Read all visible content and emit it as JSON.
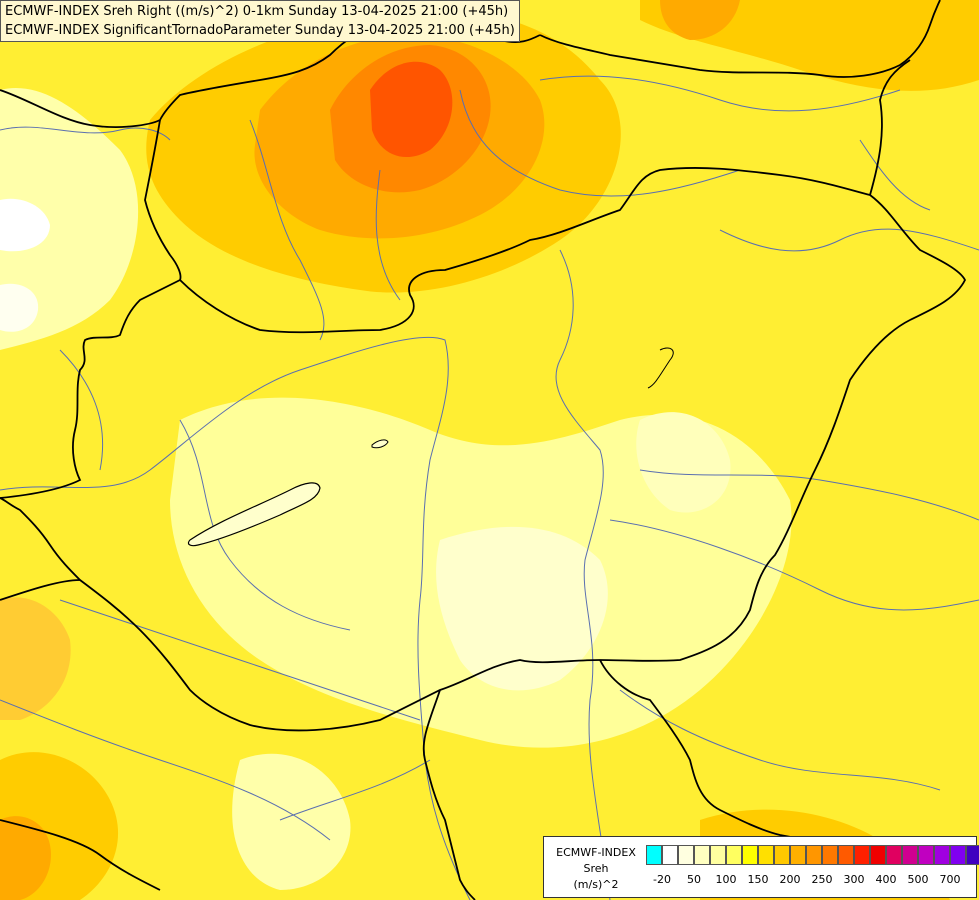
{
  "header": {
    "line1": "ECMWF-INDEX Sreh Right ((m/s)^2) 0-1km Sunday 13-04-2025 21:00 (+45h)",
    "line2": "ECMWF-INDEX SignificantTornadoParameter Sunday 13-04-2025 21:00 (+45h)"
  },
  "legend": {
    "title_line1": "ECMWF-INDEX",
    "title_line2": "Sreh",
    "title_line3": "(m/s)^2",
    "colors": [
      "#00ffff",
      "#ffffff",
      "#ffffe0",
      "#ffffc0",
      "#ffffa0",
      "#ffff60",
      "#ffff00",
      "#ffe000",
      "#ffc800",
      "#ffb000",
      "#ff9600",
      "#ff7800",
      "#ff5a00",
      "#ff2000",
      "#f00000",
      "#e00060",
      "#d00090",
      "#c000c0",
      "#a000e0",
      "#8000f0",
      "#4000c0",
      "#000080"
    ],
    "ticks": [
      "-20",
      "50",
      "100",
      "150",
      "200",
      "250",
      "300",
      "400",
      "500",
      "700"
    ]
  },
  "map_colors": {
    "base": "#ffff66",
    "light": "#ffffaa",
    "pale": "#ffffcc",
    "yellow": "#ffee00",
    "gold": "#ffd500",
    "orange": "#ffaa00",
    "deep_orange": "#ff8000",
    "red_orange": "#ff5500",
    "border": "#000000",
    "river": "#5a6fb0"
  }
}
